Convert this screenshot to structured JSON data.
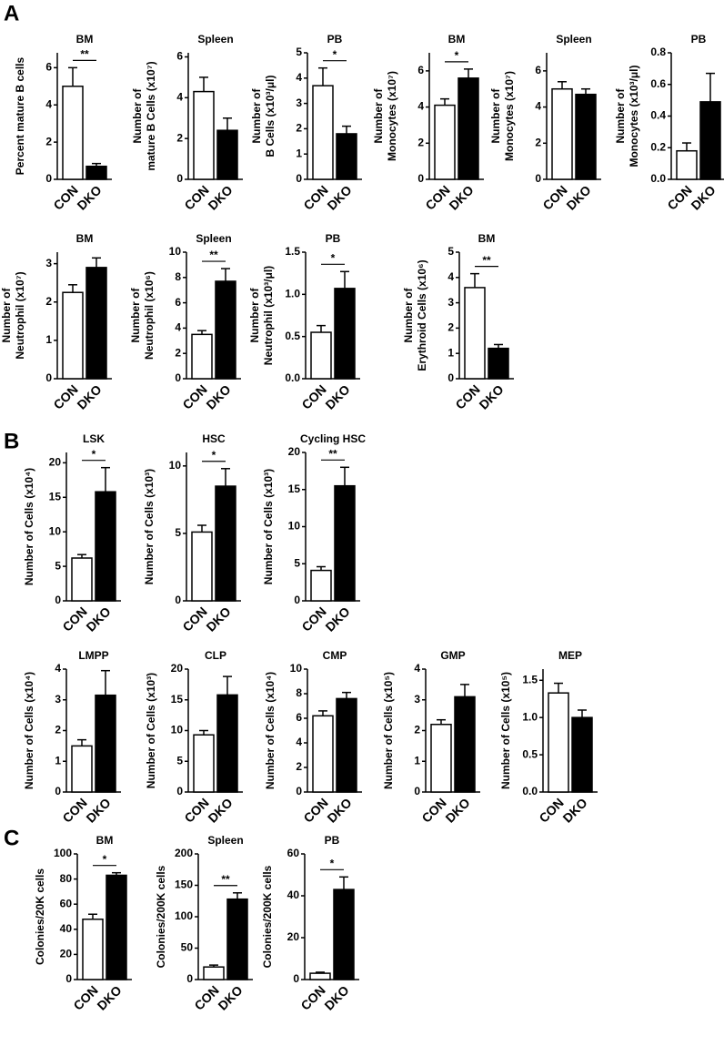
{
  "panel_labels": [
    "A",
    "B",
    "C"
  ],
  "chart_data": [
    {
      "type": "bar",
      "title": "BM",
      "ylabel": [
        "Percent mature B cells"
      ],
      "categories": [
        "CON",
        "DKO"
      ],
      "values": [
        5.0,
        0.7
      ],
      "errors": [
        1.0,
        0.15
      ],
      "colors": [
        "#ffffff",
        "#000000"
      ],
      "ylim": [
        0,
        6.8
      ],
      "yticks": [
        0,
        2,
        4,
        6
      ],
      "significance": "**"
    },
    {
      "type": "bar",
      "title": "Spleen",
      "ylabel": [
        "Number of",
        "mature B Cells (x10⁷)"
      ],
      "categories": [
        "CON",
        "DKO"
      ],
      "values": [
        4.3,
        2.4
      ],
      "errors": [
        0.7,
        0.6
      ],
      "colors": [
        "#ffffff",
        "#000000"
      ],
      "ylim": [
        0,
        6.2
      ],
      "yticks": [
        0,
        2,
        4,
        6
      ]
    },
    {
      "type": "bar",
      "title": "PB",
      "ylabel": [
        "Number of",
        "B Cells (x10³/μl)"
      ],
      "categories": [
        "CON",
        "DKO"
      ],
      "values": [
        3.7,
        1.8
      ],
      "errors": [
        0.7,
        0.3
      ],
      "colors": [
        "#ffffff",
        "#000000"
      ],
      "ylim": [
        0,
        5
      ],
      "yticks": [
        0,
        1,
        2,
        3,
        4,
        5
      ],
      "significance": "*"
    },
    {
      "type": "bar",
      "title": "BM",
      "ylabel": [
        "Number of",
        "Monocytes (x10⁷)"
      ],
      "categories": [
        "CON",
        "DKO"
      ],
      "values": [
        4.1,
        5.6
      ],
      "errors": [
        0.35,
        0.5
      ],
      "colors": [
        "#ffffff",
        "#000000"
      ],
      "ylim": [
        0,
        7
      ],
      "yticks": [
        0,
        2,
        4,
        6
      ],
      "significance": "*"
    },
    {
      "type": "bar",
      "title": "Spleen",
      "ylabel": [
        "Number of",
        "Monocytes (x10⁷)"
      ],
      "categories": [
        "CON",
        "DKO"
      ],
      "values": [
        5.0,
        4.7
      ],
      "errors": [
        0.4,
        0.3
      ],
      "colors": [
        "#ffffff",
        "#000000"
      ],
      "ylim": [
        0,
        7
      ],
      "yticks": [
        0,
        2,
        4,
        6
      ]
    },
    {
      "type": "bar",
      "title": "PB",
      "ylabel": [
        "Number of",
        "Monocytes (x10³/μl)"
      ],
      "categories": [
        "CON",
        "DKO"
      ],
      "values": [
        0.18,
        0.49
      ],
      "errors": [
        0.05,
        0.18
      ],
      "colors": [
        "#ffffff",
        "#000000"
      ],
      "ylim": [
        0,
        0.8
      ],
      "yticks": [
        {
          "value": 0,
          "label": "0.0"
        },
        0.2,
        0.4,
        0.6,
        0.8
      ]
    },
    {
      "type": "bar",
      "title": "BM",
      "ylabel": [
        "Number of",
        "Neutrophil (x10⁷)"
      ],
      "categories": [
        "CON",
        "DKO"
      ],
      "values": [
        2.25,
        2.9
      ],
      "errors": [
        0.2,
        0.25
      ],
      "colors": [
        "#ffffff",
        "#000000"
      ],
      "ylim": [
        0,
        3.3
      ],
      "yticks": [
        0,
        1,
        2,
        3
      ]
    },
    {
      "type": "bar",
      "title": "Spleen",
      "ylabel": [
        "Number of",
        "Neutrophil (x10⁶)"
      ],
      "categories": [
        "CON",
        "DKO"
      ],
      "values": [
        3.5,
        7.7
      ],
      "errors": [
        0.3,
        1.0
      ],
      "colors": [
        "#ffffff",
        "#000000"
      ],
      "ylim": [
        0,
        10
      ],
      "yticks": [
        0,
        2,
        4,
        6,
        8,
        10
      ],
      "significance": "**"
    },
    {
      "type": "bar",
      "title": "PB",
      "ylabel": [
        "Number of",
        "Neutrophil (x10³/μl)"
      ],
      "categories": [
        "CON",
        "DKO"
      ],
      "values": [
        0.55,
        1.07
      ],
      "errors": [
        0.08,
        0.2
      ],
      "colors": [
        "#ffffff",
        "#000000"
      ],
      "ylim": [
        0,
        1.5
      ],
      "yticks": [
        {
          "value": 0,
          "label": "0.0"
        },
        0.5,
        {
          "value": 1,
          "label": "1.0"
        },
        1.5
      ],
      "significance": "*"
    },
    {
      "type": "bar",
      "title": "BM",
      "ylabel": [
        "Number of",
        "Erythroid Cells (x10⁶)"
      ],
      "categories": [
        "CON",
        "DKO"
      ],
      "values": [
        3.6,
        1.2
      ],
      "errors": [
        0.55,
        0.15
      ],
      "colors": [
        "#ffffff",
        "#000000"
      ],
      "ylim": [
        0,
        5
      ],
      "yticks": [
        0,
        1,
        2,
        3,
        4,
        5
      ],
      "significance": "**"
    },
    {
      "type": "bar",
      "title": "LSK",
      "ylabel": [
        "Number of Cells (x10⁴)"
      ],
      "categories": [
        "CON",
        "DKO"
      ],
      "values": [
        6.2,
        15.8
      ],
      "errors": [
        0.5,
        3.5
      ],
      "colors": [
        "#ffffff",
        "#000000"
      ],
      "ylim": [
        0,
        21.5
      ],
      "yticks": [
        0,
        5,
        10,
        15,
        20
      ],
      "significance": "*"
    },
    {
      "type": "bar",
      "title": "HSC",
      "ylabel": [
        "Number of Cells (x10³)"
      ],
      "categories": [
        "CON",
        "DKO"
      ],
      "values": [
        5.1,
        8.5
      ],
      "errors": [
        0.5,
        1.3
      ],
      "colors": [
        "#ffffff",
        "#000000"
      ],
      "ylim": [
        0,
        11
      ],
      "yticks": [
        0,
        5,
        10
      ],
      "significance": "*"
    },
    {
      "type": "bar",
      "title": "Cycling HSC",
      "ylabel": [
        "Number of Cells (x10³)"
      ],
      "categories": [
        "CON",
        "DKO"
      ],
      "values": [
        4.1,
        15.5
      ],
      "errors": [
        0.5,
        2.5
      ],
      "colors": [
        "#ffffff",
        "#000000"
      ],
      "ylim": [
        0,
        20
      ],
      "yticks": [
        0,
        5,
        10,
        15,
        20
      ],
      "significance": "**"
    },
    {
      "type": "bar",
      "title": "LMPP",
      "ylabel": [
        "Number of Cells (x10⁴)"
      ],
      "categories": [
        "CON",
        "DKO"
      ],
      "values": [
        1.5,
        3.15
      ],
      "errors": [
        0.2,
        0.8
      ],
      "colors": [
        "#ffffff",
        "#000000"
      ],
      "ylim": [
        0,
        4
      ],
      "yticks": [
        0,
        1,
        2,
        3,
        4
      ]
    },
    {
      "type": "bar",
      "title": "CLP",
      "ylabel": [
        "Number of Cells (x10³)"
      ],
      "categories": [
        "CON",
        "DKO"
      ],
      "values": [
        9.3,
        15.8
      ],
      "errors": [
        0.7,
        3.0
      ],
      "colors": [
        "#ffffff",
        "#000000"
      ],
      "ylim": [
        0,
        20
      ],
      "yticks": [
        0,
        5,
        10,
        15,
        20
      ]
    },
    {
      "type": "bar",
      "title": "CMP",
      "ylabel": [
        "Number of Cells (x10⁴)"
      ],
      "categories": [
        "CON",
        "DKO"
      ],
      "values": [
        6.2,
        7.6
      ],
      "errors": [
        0.4,
        0.5
      ],
      "colors": [
        "#ffffff",
        "#000000"
      ],
      "ylim": [
        0,
        10
      ],
      "yticks": [
        0,
        2,
        4,
        6,
        8,
        10
      ]
    },
    {
      "type": "bar",
      "title": "GMP",
      "ylabel": [
        "Number of Cells (x10⁵)"
      ],
      "categories": [
        "CON",
        "DKO"
      ],
      "values": [
        2.2,
        3.1
      ],
      "errors": [
        0.15,
        0.4
      ],
      "colors": [
        "#ffffff",
        "#000000"
      ],
      "ylim": [
        0,
        4
      ],
      "yticks": [
        0,
        1,
        2,
        3,
        4
      ]
    },
    {
      "type": "bar",
      "title": "MEP",
      "ylabel": [
        "Number of Cells (x10⁵)"
      ],
      "categories": [
        "CON",
        "DKO"
      ],
      "values": [
        1.33,
        1.0
      ],
      "errors": [
        0.13,
        0.1
      ],
      "colors": [
        "#ffffff",
        "#000000"
      ],
      "ylim": [
        0,
        1.65
      ],
      "yticks": [
        {
          "value": 0,
          "label": "0.0"
        },
        0.5,
        {
          "value": 1,
          "label": "1.0"
        },
        1.5
      ]
    },
    {
      "type": "bar",
      "title": "BM",
      "ylabel": [
        "Colonies/20K cells"
      ],
      "categories": [
        "CON",
        "DKO"
      ],
      "values": [
        48,
        83
      ],
      "errors": [
        4,
        2
      ],
      "colors": [
        "#ffffff",
        "#000000"
      ],
      "ylim": [
        0,
        100
      ],
      "yticks": [
        0,
        20,
        40,
        60,
        80,
        100
      ],
      "significance": "*"
    },
    {
      "type": "bar",
      "title": "Spleen",
      "ylabel": [
        "Colonies/200K cells"
      ],
      "categories": [
        "CON",
        "DKO"
      ],
      "values": [
        20,
        128
      ],
      "errors": [
        3,
        10
      ],
      "colors": [
        "#ffffff",
        "#000000"
      ],
      "ylim": [
        0,
        200
      ],
      "yticks": [
        0,
        50,
        100,
        150,
        200
      ],
      "significance": "**"
    },
    {
      "type": "bar",
      "title": "PB",
      "ylabel": [
        "Colonies/200K cells"
      ],
      "categories": [
        "CON",
        "DKO"
      ],
      "values": [
        3,
        43
      ],
      "errors": [
        0.5,
        6
      ],
      "colors": [
        "#ffffff",
        "#000000"
      ],
      "ylim": [
        0,
        60
      ],
      "yticks": [
        0,
        20,
        40,
        60
      ],
      "significance": "*"
    }
  ]
}
